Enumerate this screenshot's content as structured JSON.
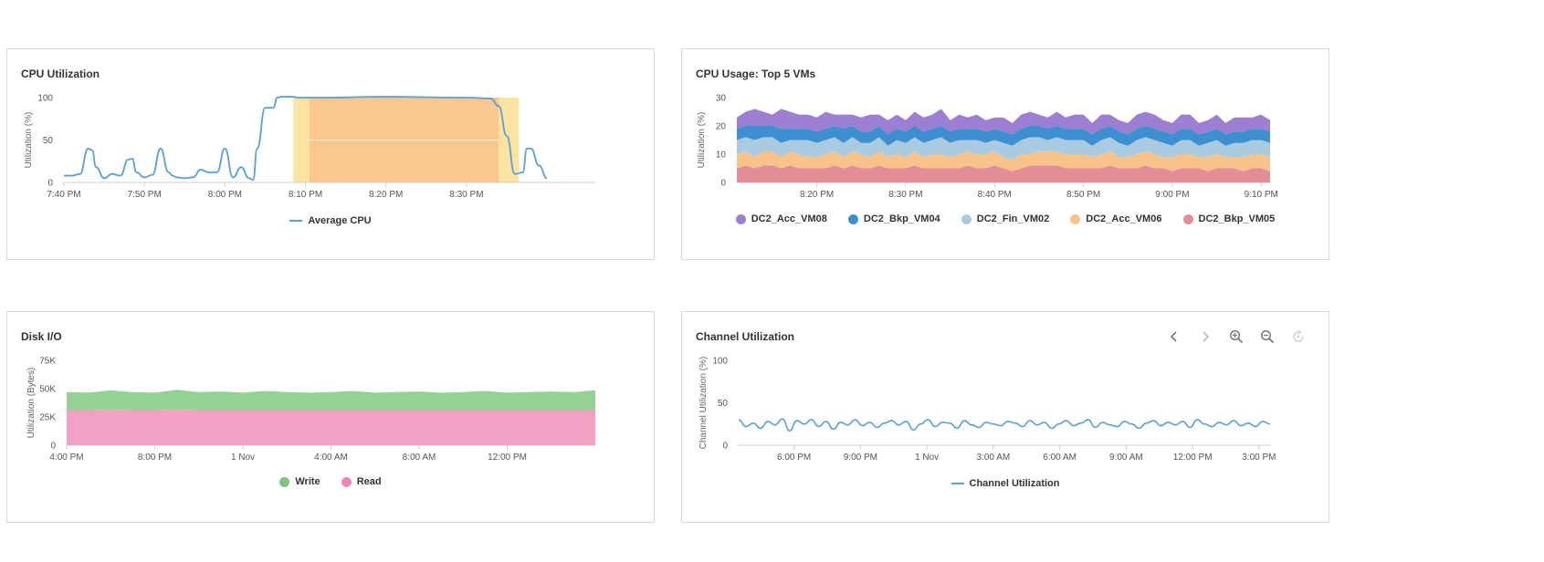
{
  "colors": {
    "cpu_line": "#5aa0d6",
    "band_outer": "#fbe4a2",
    "band_inner": "#f9c78f",
    "vm08": "#9c7fd2",
    "vm04": "#3d8fcf",
    "fin02": "#a9cbe2",
    "acc06": "#f8c38a",
    "bkp05": "#e38e96",
    "write": "#93d195",
    "read": "#f3a0c5",
    "channel_line": "#5aa0d6"
  },
  "cards": {
    "cpu": {
      "title": "CPU Utilization",
      "ylabel": "Utilization (%)"
    },
    "top5": {
      "title": "CPU Usage: Top 5 VMs",
      "ylabel": "Utilization (%)"
    },
    "disk": {
      "title": "Disk I/O",
      "ylabel": "Utilization (Bytes)"
    },
    "channel": {
      "title": "Channel Utilization",
      "ylabel": "Channel Utilization (%)"
    }
  },
  "toolbar": {
    "icons": [
      "chevron-left-icon",
      "chevron-right-icon",
      "zoom-in-icon",
      "zoom-out-icon",
      "reset-zoom-icon"
    ]
  },
  "chart_data": [
    {
      "type": "line",
      "title": "CPU Utilization",
      "ylabel": "Utilization (%)",
      "ylim": [
        0,
        100
      ],
      "yticks": [
        "0",
        "50",
        "100"
      ],
      "xtick_labels": [
        "7:40 PM",
        "7:50 PM",
        "8:00 PM",
        "8:10 PM",
        "8:20 PM",
        "8:30 PM"
      ],
      "xrange_min": [
        0,
        66
      ],
      "xtick_min": [
        0,
        10,
        20,
        30,
        40,
        50
      ],
      "highlight_band_outer_min": [
        28.5,
        56.5
      ],
      "highlight_band_inner_min": [
        30.5,
        54
      ],
      "series": [
        {
          "name": "Average CPU",
          "x_min": [
            0,
            1,
            2,
            3,
            3.5,
            4,
            5,
            6,
            7,
            8,
            8.5,
            9,
            10,
            11,
            12,
            13,
            13.5,
            14,
            15,
            16,
            17,
            18,
            19,
            20,
            21,
            22,
            23,
            23.5,
            24,
            25,
            26,
            26.5,
            27,
            28,
            28.5,
            29,
            30,
            31,
            32,
            40,
            50,
            53,
            54,
            55,
            56,
            57,
            57.5,
            58,
            59,
            60
          ],
          "values": [
            8,
            8,
            10,
            40,
            38,
            18,
            5,
            10,
            8,
            27,
            28,
            12,
            6,
            9,
            40,
            12,
            8,
            6,
            5,
            6,
            15,
            12,
            12,
            40,
            6,
            18,
            5,
            3,
            40,
            88,
            88,
            100,
            101,
            101,
            101,
            100,
            100,
            100,
            100,
            101,
            100,
            99,
            90,
            55,
            10,
            12,
            40,
            40,
            20,
            5
          ]
        }
      ]
    },
    {
      "type": "area",
      "title": "CPU Usage: Top 5 VMs",
      "ylabel": "Utilization (%)",
      "stacked": true,
      "ylim": [
        0,
        30
      ],
      "yticks": [
        "0",
        "10",
        "20",
        "30"
      ],
      "xtick_labels": [
        "8:20 PM",
        "8:30 PM",
        "8:40 PM",
        "8:50 PM",
        "9:00 PM",
        "9:10 PM"
      ],
      "xrange_min": [
        0,
        60
      ],
      "xtick_min": [
        9,
        19,
        29,
        39,
        49,
        59
      ],
      "series": [
        {
          "name": "DC2_Bkp_VM05",
          "values": [
            5,
            6,
            5,
            6,
            6,
            5,
            6,
            5,
            5,
            5,
            5,
            6,
            5,
            6,
            5,
            5,
            6,
            5,
            5,
            5,
            6,
            5,
            5,
            5,
            5,
            5,
            6,
            5,
            5,
            6,
            5,
            4,
            5,
            6,
            6,
            6,
            6,
            5,
            5,
            5,
            5,
            5,
            6,
            5,
            5,
            5,
            6,
            5,
            5,
            4,
            5,
            5,
            5,
            4,
            5,
            5,
            5,
            4,
            5,
            5,
            4
          ]
        },
        {
          "name": "DC2_Acc_VM06",
          "values": [
            5,
            5,
            4,
            5,
            5,
            4,
            5,
            5,
            4,
            4,
            5,
            5,
            4,
            5,
            5,
            4,
            5,
            4,
            5,
            4,
            5,
            4,
            5,
            5,
            4,
            5,
            5,
            5,
            5,
            5,
            4,
            4,
            5,
            4,
            5,
            5,
            5,
            5,
            5,
            5,
            4,
            5,
            5,
            4,
            4,
            5,
            5,
            5,
            4,
            5,
            5,
            5,
            4,
            5,
            5,
            4,
            4,
            5,
            5,
            5,
            5
          ]
        },
        {
          "name": "DC2_Fin_VM02",
          "values": [
            5,
            5,
            6,
            5,
            5,
            5,
            4,
            5,
            6,
            5,
            5,
            5,
            5,
            5,
            4,
            5,
            5,
            4,
            5,
            5,
            5,
            5,
            5,
            6,
            5,
            5,
            4,
            5,
            4,
            4,
            5,
            5,
            5,
            6,
            5,
            4,
            5,
            5,
            5,
            5,
            4,
            5,
            5,
            5,
            4,
            5,
            5,
            5,
            5,
            4,
            5,
            5,
            4,
            5,
            5,
            4,
            5,
            5,
            5,
            5,
            5
          ]
        },
        {
          "name": "DC2_Bkp_VM04",
          "values": [
            4,
            4,
            5,
            4,
            4,
            5,
            4,
            4,
            4,
            4,
            4,
            4,
            5,
            4,
            4,
            4,
            4,
            4,
            4,
            4,
            4,
            4,
            4,
            4,
            4,
            4,
            4,
            4,
            4,
            4,
            4,
            4,
            4,
            4,
            4,
            4,
            4,
            4,
            4,
            4,
            4,
            4,
            4,
            4,
            4,
            4,
            4,
            4,
            4,
            4,
            4,
            4,
            4,
            4,
            4,
            4,
            4,
            4,
            4,
            4,
            4
          ]
        },
        {
          "name": "DC2_Acc_VM08",
          "values": [
            4,
            5,
            6,
            5,
            4,
            7,
            6,
            5,
            5,
            5,
            6,
            4,
            5,
            4,
            5,
            6,
            4,
            5,
            5,
            4,
            5,
            5,
            5,
            6,
            4,
            5,
            4,
            5,
            4,
            4,
            5,
            4,
            5,
            5,
            4,
            4,
            5,
            4,
            5,
            5,
            4,
            5,
            4,
            4,
            4,
            5,
            5,
            5,
            4,
            4,
            5,
            5,
            4,
            4,
            5,
            4,
            5,
            5,
            4,
            5,
            4
          ]
        }
      ],
      "legend_order": [
        "DC2_Acc_VM08",
        "DC2_Bkp_VM04",
        "DC2_Fin_VM02",
        "DC2_Acc_VM06",
        "DC2_Bkp_VM05"
      ]
    },
    {
      "type": "area",
      "title": "Disk I/O",
      "ylabel": "Utilization (Bytes)",
      "stacked": true,
      "ylim": [
        0,
        75000
      ],
      "yticks": [
        "0",
        "25K",
        "50K",
        "75K"
      ],
      "xtick_labels": [
        "4:00 PM",
        "8:00 PM",
        "1 Nov",
        "4:00 AM",
        "8:00 AM",
        "12:00 PM"
      ],
      "xrange_hours": [
        0,
        24
      ],
      "xtick_hours": [
        0,
        4,
        8,
        12,
        16,
        20
      ],
      "series": [
        {
          "name": "Read",
          "values": [
            31000,
            31000,
            31500,
            31000,
            31000,
            31500,
            31000,
            31000,
            31000,
            31000,
            31000,
            31000,
            31000,
            31000,
            31000,
            31000,
            31000,
            31000,
            31000,
            31000,
            31000,
            31000,
            31000,
            31000,
            31000
          ]
        },
        {
          "name": "Write",
          "values": [
            16000,
            15500,
            17000,
            16000,
            15500,
            17500,
            16000,
            16500,
            15500,
            17000,
            16000,
            15500,
            16000,
            17000,
            15500,
            16000,
            16500,
            15500,
            16000,
            17000,
            15500,
            16000,
            16500,
            16000,
            17500
          ]
        }
      ],
      "legend_order": [
        "Write",
        "Read"
      ]
    },
    {
      "type": "line",
      "title": "Channel Utilization",
      "ylabel": "Channel Utilization (%)",
      "ylim": [
        0,
        100
      ],
      "yticks": [
        "0",
        "50",
        "100"
      ],
      "xtick_labels": [
        "6:00 PM",
        "9:00 PM",
        "1 Nov",
        "3:00 AM",
        "6:00 AM",
        "9:00 AM",
        "12:00 PM",
        "3:00 PM"
      ],
      "xrange_hours": [
        0,
        24
      ],
      "xtick_hours": [
        2.5,
        5.5,
        8.5,
        11.5,
        14.5,
        17.5,
        20.5,
        23.5
      ],
      "series": [
        {
          "name": "Channel Utilization",
          "values": [
            30,
            22,
            26,
            20,
            28,
            24,
            31,
            17,
            29,
            25,
            30,
            22,
            28,
            19,
            27,
            24,
            30,
            23,
            27,
            21,
            26,
            29,
            24,
            28,
            18,
            25,
            30,
            22,
            27,
            26,
            20,
            29,
            24,
            21,
            27,
            25,
            23,
            28,
            26,
            22,
            29,
            24,
            27,
            20,
            25,
            29,
            23,
            26,
            30,
            21,
            27,
            24,
            22,
            28,
            25,
            20,
            26,
            29,
            23,
            27,
            24,
            28,
            21,
            30,
            25,
            22,
            27,
            24,
            29,
            23,
            26,
            22,
            28,
            25
          ]
        }
      ],
      "legend_order": [
        "Channel Utilization"
      ]
    }
  ]
}
